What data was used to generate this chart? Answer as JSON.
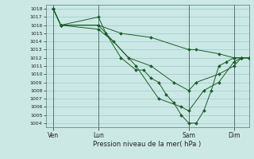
{
  "background_color": "#cbe8e4",
  "grid_color": "#99cccc",
  "line_color": "#1a5c28",
  "marker_color": "#1a5c28",
  "xlabel": "Pression niveau de la mer( hPa )",
  "ylim": [
    1003.5,
    1018.5
  ],
  "yticks": [
    1004,
    1005,
    1006,
    1007,
    1008,
    1009,
    1010,
    1011,
    1012,
    1013,
    1014,
    1015,
    1016,
    1017,
    1018
  ],
  "xtick_labels": [
    "Ven",
    "Lun",
    "Sam",
    "Dim"
  ],
  "xtick_positions": [
    0,
    24,
    72,
    96
  ],
  "xlim": [
    -4,
    104
  ],
  "lines": [
    {
      "x": [
        0,
        4,
        24,
        28,
        36,
        44,
        48,
        52,
        56,
        60,
        64,
        68,
        72,
        76,
        80,
        84,
        88,
        92,
        96,
        100,
        104
      ],
      "y": [
        1018,
        1016,
        1017,
        1015,
        1012,
        1010.5,
        1010.5,
        1009.5,
        1009,
        1007.5,
        1006.5,
        1005,
        1004,
        1004,
        1005.5,
        1008,
        1011,
        1011.5,
        1012,
        1012,
        1012
      ]
    },
    {
      "x": [
        0,
        4,
        24,
        28,
        40,
        52,
        64,
        72,
        76,
        88,
        96,
        100,
        104
      ],
      "y": [
        1018,
        1016,
        1016,
        1015,
        1012,
        1011,
        1009,
        1008,
        1009,
        1010,
        1011,
        1012,
        1012
      ]
    },
    {
      "x": [
        0,
        4,
        24,
        36,
        52,
        72,
        76,
        88,
        96,
        100,
        104
      ],
      "y": [
        1018,
        1016,
        1016,
        1015,
        1014.5,
        1013,
        1013,
        1012.5,
        1012,
        1012,
        1012
      ]
    },
    {
      "x": [
        0,
        4,
        24,
        32,
        44,
        56,
        68,
        72,
        80,
        88,
        96,
        100,
        104
      ],
      "y": [
        1018,
        1016,
        1015.5,
        1014,
        1011,
        1007,
        1006,
        1005.5,
        1008,
        1009,
        1011.5,
        1012,
        1012
      ]
    }
  ]
}
